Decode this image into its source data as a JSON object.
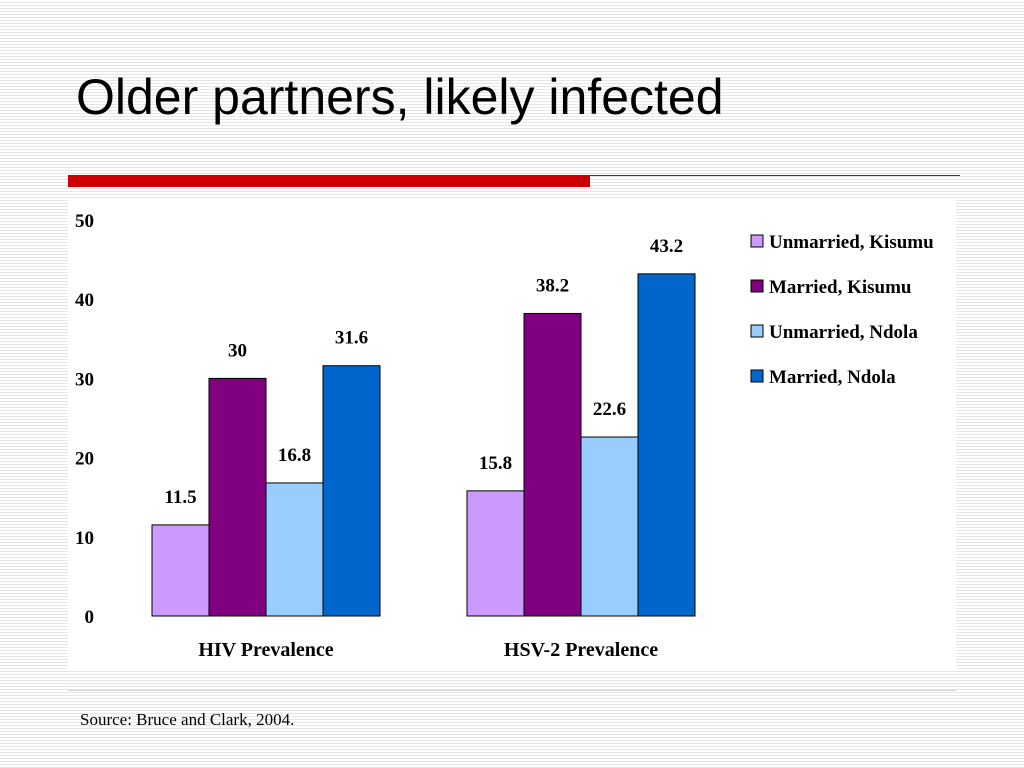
{
  "slide": {
    "title": "Older partners, likely infected",
    "source": "Source: Bruce and Clark, 2004.",
    "accent_color": "#cc0000"
  },
  "chart_data": {
    "type": "bar",
    "categories": [
      "HIV Prevalence",
      "HSV-2 Prevalence"
    ],
    "series": [
      {
        "name": "Unmarried, Kisumu",
        "values": [
          11.5,
          15.8
        ],
        "color": "#cc99ff"
      },
      {
        "name": "Married, Kisumu",
        "values": [
          30,
          38.2
        ],
        "color": "#800080"
      },
      {
        "name": "Unmarried, Ndola",
        "values": [
          16.8,
          22.6
        ],
        "color": "#99ccff"
      },
      {
        "name": "Married, Ndola",
        "values": [
          31.6,
          43.2
        ],
        "color": "#0066cc"
      }
    ],
    "value_labels": [
      [
        "11.5",
        "15.8"
      ],
      [
        "30",
        "38.2"
      ],
      [
        "16.8",
        "22.6"
      ],
      [
        "31.6",
        "43.2"
      ]
    ],
    "ylim": [
      0,
      50
    ],
    "yticks": [
      "0",
      "10",
      "20",
      "30",
      "40",
      "50"
    ],
    "grid": false,
    "legend": "right"
  }
}
